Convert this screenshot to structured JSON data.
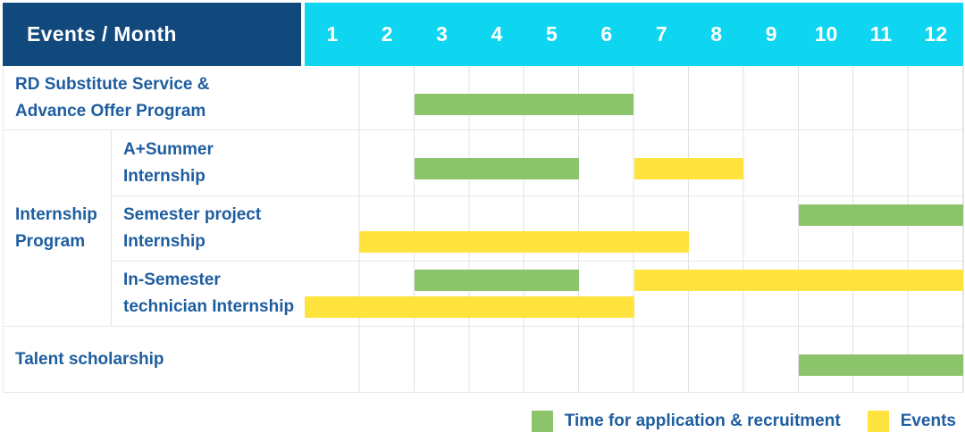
{
  "colors": {
    "navy": "#12497d",
    "cyan": "#0ed5f0",
    "green": "#8cc46b",
    "yellow": "#ffe43f",
    "label_blue": "#1e5d9f"
  },
  "table": {
    "corner_label": "Events / Month",
    "group_label_lines": [
      "Internship",
      "Program"
    ]
  },
  "chart_data": {
    "type": "bar",
    "subtype": "gantt-schedule",
    "title": "Events / Month",
    "x_categories": [
      "1",
      "2",
      "3",
      "4",
      "5",
      "6",
      "7",
      "8",
      "9",
      "10",
      "11",
      "12"
    ],
    "x_range": [
      1,
      12
    ],
    "grid": "vertical-month-separators",
    "legend_position": "bottom-right",
    "rows": [
      {
        "group": "",
        "label": "RD Substitute Service & Advance Offer Program",
        "label_lines": [
          "RD Substitute Service &",
          "Advance Offer Program"
        ],
        "bars": [
          {
            "kind": "application",
            "color": "green",
            "start_month": 3,
            "end_month": 6,
            "band": "center"
          }
        ]
      },
      {
        "group": "Internship Program",
        "label": "A+Summer Internship",
        "label_lines": [
          "A+Summer",
          "Internship"
        ],
        "bars": [
          {
            "kind": "application",
            "color": "green",
            "start_month": 3,
            "end_month": 5,
            "band": "center"
          },
          {
            "kind": "events",
            "color": "yellow",
            "start_month": 7,
            "end_month": 8,
            "band": "center"
          }
        ]
      },
      {
        "group": "Internship Program",
        "label": "Semester project Internship",
        "label_lines": [
          "Semester project",
          "Internship"
        ],
        "bars": [
          {
            "kind": "application",
            "color": "green",
            "start_month": 10,
            "end_month": 12,
            "band": "upper"
          },
          {
            "kind": "events",
            "color": "yellow",
            "start_month": 2,
            "end_month": 7,
            "band": "lower"
          }
        ]
      },
      {
        "group": "Internship Program",
        "label": "In-Semester technician Internship",
        "label_lines": [
          "In-Semester",
          "technician Internship"
        ],
        "bars": [
          {
            "kind": "application",
            "color": "green",
            "start_month": 3,
            "end_month": 5,
            "band": "upper"
          },
          {
            "kind": "events",
            "color": "yellow",
            "start_month": 7,
            "end_month": 12,
            "band": "upper"
          },
          {
            "kind": "events",
            "color": "yellow",
            "start_month": 1,
            "end_month": 6,
            "band": "lower"
          }
        ]
      },
      {
        "group": "",
        "label": "Talent scholarship",
        "label_lines": [
          "Talent scholarship"
        ],
        "bars": [
          {
            "kind": "application",
            "color": "green",
            "start_month": 10,
            "end_month": 12,
            "band": "center"
          }
        ]
      }
    ]
  },
  "legend": {
    "items": [
      {
        "color": "green",
        "label": "Time for application & recruitment"
      },
      {
        "color": "yellow",
        "label": "Events"
      }
    ]
  }
}
